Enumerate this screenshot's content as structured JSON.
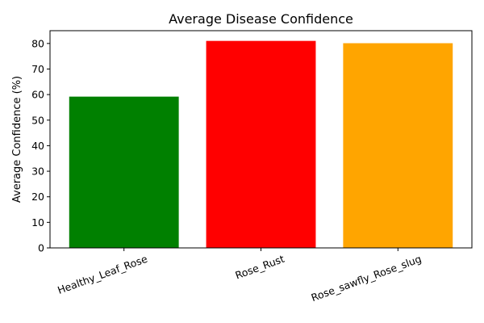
{
  "chart_data": {
    "type": "bar",
    "title": "Average Disease Confidence",
    "xlabel": "",
    "ylabel": "Average Confidence (%)",
    "categories": [
      "Healthy_Leaf_Rose",
      "Rose_Rust",
      "Rose_sawfly_Rose_slug"
    ],
    "values": [
      59.2,
      81.0,
      80.1
    ],
    "colors": [
      "#008000",
      "#ff0000",
      "#ffa500"
    ],
    "ylim": [
      0,
      85
    ],
    "yticks": [
      0,
      10,
      20,
      30,
      40,
      50,
      60,
      70,
      80
    ],
    "grid": false,
    "legend": "none"
  }
}
